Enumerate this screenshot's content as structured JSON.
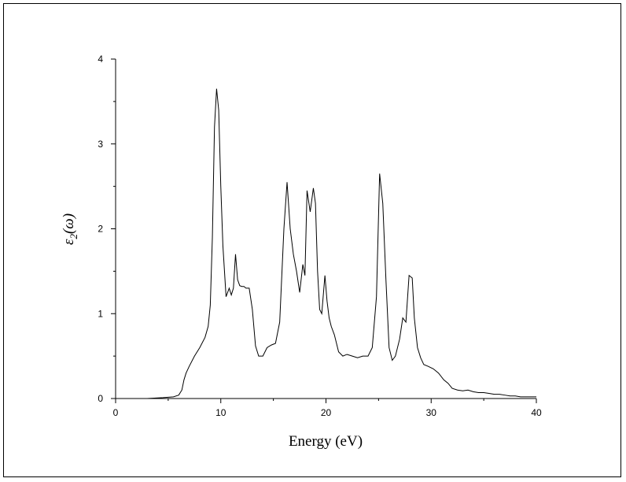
{
  "chart_data": {
    "type": "line",
    "title": "",
    "xlabel": "Energy (eV)",
    "ylabel_main": "ε",
    "ylabel_sub": "2",
    "ylabel_arg": "(ω)",
    "xlim": [
      0,
      40
    ],
    "ylim": [
      0,
      4
    ],
    "xticks": [
      0,
      10,
      20,
      30,
      40
    ],
    "yticks": [
      0,
      1,
      2,
      3,
      4
    ],
    "grid": false,
    "legend": "none",
    "line_color": "#000000",
    "series": [
      {
        "x": [
          1.5,
          3.0,
          4.5,
          5.5,
          6.0,
          6.3,
          6.5,
          6.7,
          7.0,
          7.5,
          8.0,
          8.5,
          8.8,
          9.0,
          9.2,
          9.4,
          9.6,
          9.8,
          10.0,
          10.2,
          10.5,
          10.8,
          11.0,
          11.2,
          11.4,
          11.6,
          11.8,
          12.0,
          12.2,
          12.4,
          12.7,
          13.0,
          13.3,
          13.6,
          14.0,
          14.4,
          14.8,
          15.2,
          15.6,
          16.0,
          16.3,
          16.6,
          16.9,
          17.2,
          17.5,
          17.8,
          18.0,
          18.2,
          18.5,
          18.8,
          19.0,
          19.2,
          19.4,
          19.6,
          19.9,
          20.1,
          20.3,
          20.5,
          20.8,
          21.2,
          21.6,
          22.0,
          22.5,
          23.0,
          23.5,
          24.0,
          24.4,
          24.8,
          25.1,
          25.4,
          25.7,
          26.0,
          26.3,
          26.6,
          27.0,
          27.3,
          27.6,
          27.9,
          28.2,
          28.4,
          28.7,
          29.0,
          29.3,
          29.7,
          30.2,
          30.7,
          31.2,
          31.6,
          32.0,
          32.5,
          33.0,
          33.5,
          34.0,
          34.5,
          35.0,
          35.5,
          36.0,
          36.5,
          37.0,
          37.5,
          38.0,
          38.5,
          39.0,
          40.0
        ],
        "y": [
          0.0,
          0.0,
          0.01,
          0.02,
          0.04,
          0.1,
          0.22,
          0.3,
          0.38,
          0.5,
          0.6,
          0.72,
          0.85,
          1.1,
          1.9,
          3.2,
          3.65,
          3.4,
          2.5,
          1.8,
          1.2,
          1.3,
          1.22,
          1.3,
          1.7,
          1.4,
          1.33,
          1.32,
          1.32,
          1.3,
          1.3,
          1.05,
          0.62,
          0.5,
          0.5,
          0.6,
          0.63,
          0.65,
          0.9,
          2.0,
          2.55,
          2.0,
          1.7,
          1.5,
          1.25,
          1.58,
          1.45,
          2.45,
          2.2,
          2.48,
          2.3,
          1.5,
          1.05,
          1.0,
          1.45,
          1.15,
          0.95,
          0.85,
          0.75,
          0.55,
          0.5,
          0.52,
          0.5,
          0.48,
          0.5,
          0.5,
          0.6,
          1.2,
          2.65,
          2.3,
          1.4,
          0.6,
          0.45,
          0.5,
          0.7,
          0.95,
          0.9,
          1.45,
          1.42,
          0.95,
          0.6,
          0.48,
          0.4,
          0.38,
          0.35,
          0.3,
          0.22,
          0.18,
          0.12,
          0.1,
          0.09,
          0.1,
          0.08,
          0.07,
          0.07,
          0.06,
          0.05,
          0.05,
          0.04,
          0.03,
          0.03,
          0.02,
          0.02,
          0.02
        ]
      }
    ]
  }
}
